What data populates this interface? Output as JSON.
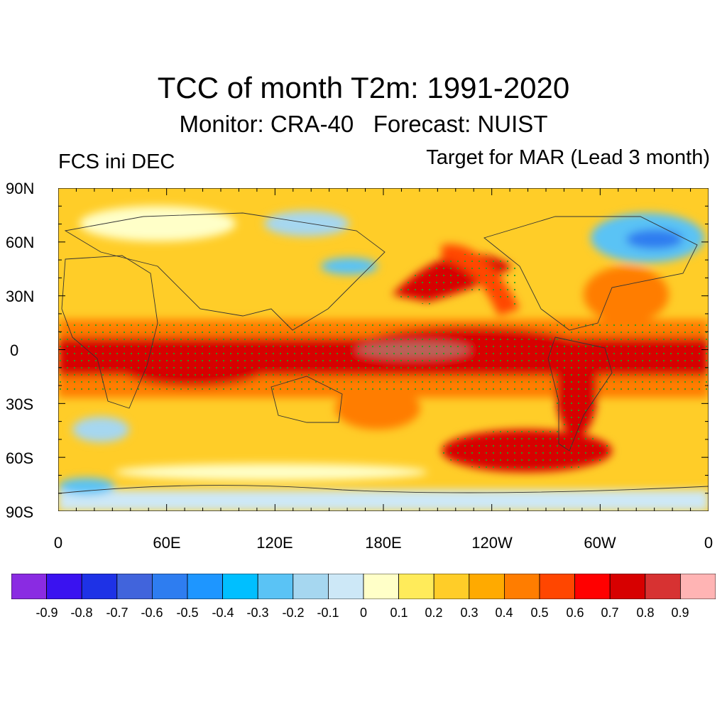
{
  "figure": {
    "title": "TCC of month T2m: 1991-2020",
    "subtitle": "Monitor: CRA-40   Forecast: NUIST",
    "left_label": "FCS ini DEC",
    "right_label": "Target for MAR (Lead 3 month)"
  },
  "axes": {
    "y_ticks": [
      "90N",
      "60N",
      "30N",
      "0",
      "30S",
      "60S",
      "90S"
    ],
    "y_values": [
      90,
      60,
      30,
      0,
      -30,
      -60,
      -90
    ],
    "x_ticks": [
      "0",
      "60E",
      "120E",
      "180E",
      "120W",
      "60W",
      "0"
    ],
    "x_values": [
      0,
      60,
      120,
      180,
      240,
      300,
      360
    ]
  },
  "colorbar": {
    "labels": [
      "-0.9",
      "-0.8",
      "-0.7",
      "-0.6",
      "-0.5",
      "-0.4",
      "-0.3",
      "-0.2",
      "-0.1",
      "0",
      "0.1",
      "0.2",
      "0.3",
      "0.4",
      "0.5",
      "0.6",
      "0.7",
      "0.8",
      "0.9"
    ],
    "colors": [
      "#8a2be2",
      "#3a12f0",
      "#1e32e6",
      "#4164dc",
      "#2e7df0",
      "#1e96ff",
      "#00bfff",
      "#5ac3f5",
      "#a6d7f0",
      "#cde8f7",
      "#ffffc8",
      "#ffeb5a",
      "#ffcd28",
      "#ffaa00",
      "#ff7d00",
      "#ff4600",
      "#ff0000",
      "#d70000",
      "#d73232",
      "#ffb4b4"
    ]
  },
  "map_regions": [
    {
      "name": "equatorial-pacific-band",
      "value": 0.75
    },
    {
      "name": "central-pacific-core",
      "value": 0.95
    },
    {
      "name": "north-pacific-arc",
      "value": 0.7
    },
    {
      "name": "southern-ocean-pacific",
      "value": 0.7
    },
    {
      "name": "indian-ocean",
      "value": 0.7
    },
    {
      "name": "south-america",
      "value": 0.7
    },
    {
      "name": "north-asia",
      "value": -0.2
    },
    {
      "name": "canada",
      "value": -0.3
    },
    {
      "name": "antarctica",
      "value": -0.2
    }
  ]
}
